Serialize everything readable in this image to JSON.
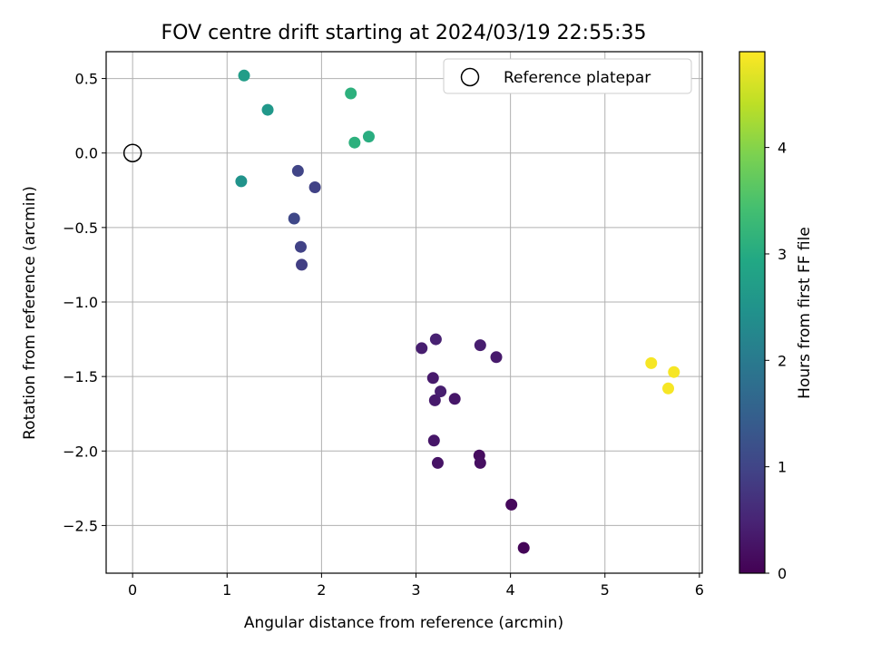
{
  "chart_data": {
    "type": "scatter",
    "title": "FOV centre drift starting at 2024/03/19 22:55:35",
    "xlabel": "Angular distance from reference (arcmin)",
    "ylabel": "Rotation from reference (arcmin)",
    "xlim": [
      -0.28,
      6.03
    ],
    "ylim": [
      -2.82,
      0.68
    ],
    "xticks": [
      0,
      1,
      2,
      3,
      4,
      5,
      6
    ],
    "xtick_labels": [
      "0",
      "1",
      "2",
      "3",
      "4",
      "5",
      "6"
    ],
    "yticks": [
      0.5,
      0.0,
      -0.5,
      -1.0,
      -1.5,
      -2.0,
      -2.5
    ],
    "ytick_labels": [
      "0.5",
      "0.0",
      "−0.5",
      "−1.0",
      "−1.5",
      "−2.0",
      "−2.5"
    ],
    "grid": true,
    "colormap": "viridis",
    "colorbar": {
      "label": "Hours from first FF file",
      "range": [
        0,
        4.9
      ],
      "ticks": [
        0,
        1,
        2,
        3,
        4
      ],
      "tick_labels": [
        "0",
        "1",
        "2",
        "3",
        "4"
      ]
    },
    "reference": {
      "name": "Reference platepar",
      "x": 0.0,
      "y": 0.0
    },
    "legend": {
      "placement": "top-right",
      "entries": [
        "Reference platepar"
      ]
    },
    "points": [
      {
        "x": 4.14,
        "y": -2.65,
        "hours": 0.05
      },
      {
        "x": 4.01,
        "y": -2.36,
        "hours": 0.1
      },
      {
        "x": 3.67,
        "y": -2.03,
        "hours": 0.15
      },
      {
        "x": 3.68,
        "y": -2.08,
        "hours": 0.2
      },
      {
        "x": 3.23,
        "y": -2.08,
        "hours": 0.25
      },
      {
        "x": 3.19,
        "y": -1.93,
        "hours": 0.3
      },
      {
        "x": 3.2,
        "y": -1.66,
        "hours": 0.35
      },
      {
        "x": 3.26,
        "y": -1.6,
        "hours": 0.4
      },
      {
        "x": 3.41,
        "y": -1.65,
        "hours": 0.3
      },
      {
        "x": 3.18,
        "y": -1.51,
        "hours": 0.35
      },
      {
        "x": 3.06,
        "y": -1.31,
        "hours": 0.4
      },
      {
        "x": 3.21,
        "y": -1.25,
        "hours": 0.45
      },
      {
        "x": 3.68,
        "y": -1.29,
        "hours": 0.4
      },
      {
        "x": 3.85,
        "y": -1.37,
        "hours": 0.35
      },
      {
        "x": 1.79,
        "y": -0.75,
        "hours": 0.9
      },
      {
        "x": 1.78,
        "y": -0.63,
        "hours": 0.95
      },
      {
        "x": 1.71,
        "y": -0.44,
        "hours": 1.05
      },
      {
        "x": 1.93,
        "y": -0.23,
        "hours": 0.95
      },
      {
        "x": 1.75,
        "y": -0.12,
        "hours": 1.0
      },
      {
        "x": 1.15,
        "y": -0.19,
        "hours": 2.5
      },
      {
        "x": 1.43,
        "y": 0.29,
        "hours": 2.6
      },
      {
        "x": 1.18,
        "y": 0.52,
        "hours": 2.7
      },
      {
        "x": 2.35,
        "y": 0.07,
        "hours": 3.1
      },
      {
        "x": 2.5,
        "y": 0.11,
        "hours": 3.05
      },
      {
        "x": 2.31,
        "y": 0.4,
        "hours": 3.1
      },
      {
        "x": 5.49,
        "y": -1.41,
        "hours": 4.85
      },
      {
        "x": 5.73,
        "y": -1.47,
        "hours": 4.85
      },
      {
        "x": 5.67,
        "y": -1.58,
        "hours": 4.85
      }
    ]
  }
}
